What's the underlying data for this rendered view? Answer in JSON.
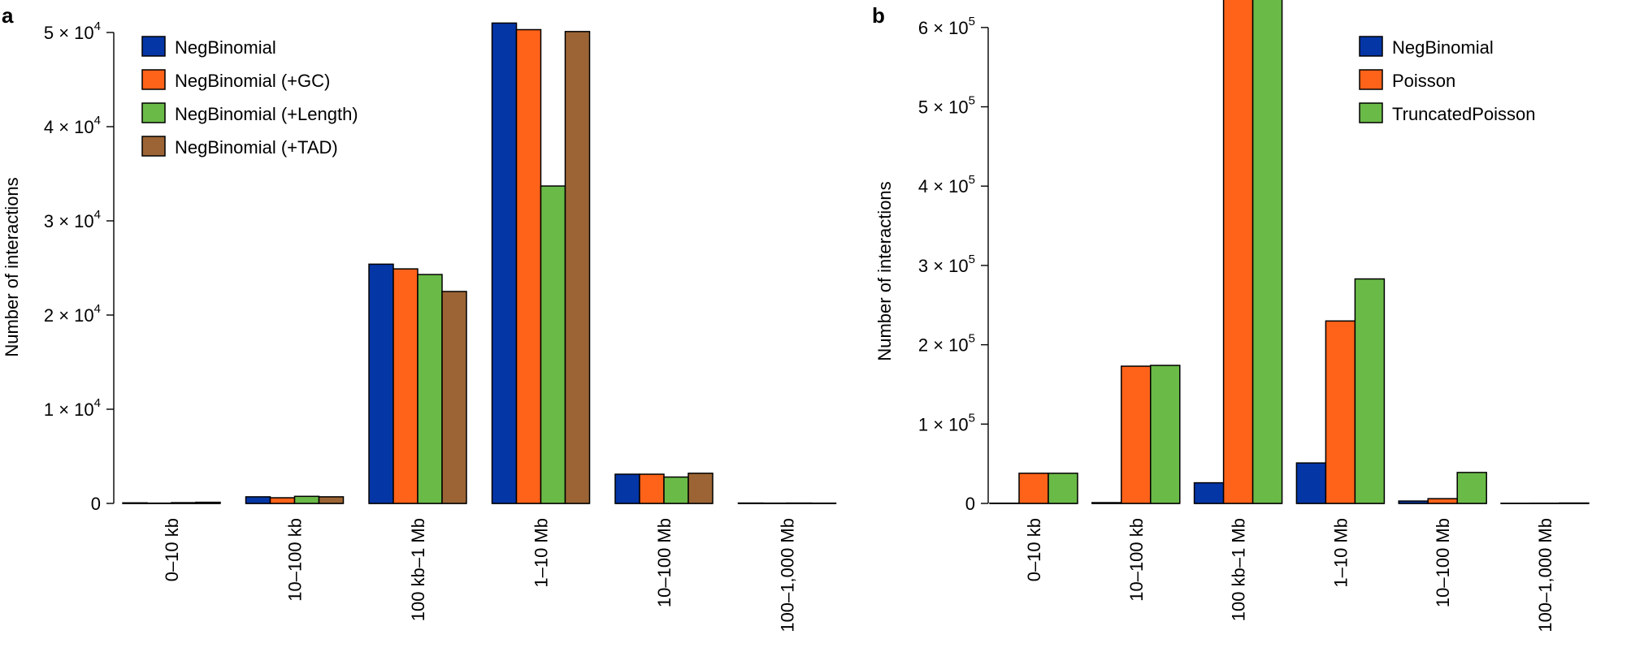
{
  "colors": {
    "NegBinomial": "#0536a6",
    "NegBinomial (+GC)": "#ff6219",
    "NegBinomial (+Length)": "#6aba47",
    "NegBinomial (+TAD)": "#9c6434",
    "Poisson": "#ff6219",
    "TruncatedPoisson": "#6aba47"
  },
  "chart_data": [
    {
      "type": "bar",
      "panel_label": "a",
      "ylabel": "Number of interactions",
      "ylim": [
        0,
        50000
      ],
      "yticks": [
        0,
        10000,
        20000,
        30000,
        40000,
        50000
      ],
      "ytick_labels": [
        {
          "base": "0",
          "exp": ""
        },
        {
          "base": "1 × 10",
          "exp": "4"
        },
        {
          "base": "2 × 10",
          "exp": "4"
        },
        {
          "base": "3 × 10",
          "exp": "4"
        },
        {
          "base": "4 × 10",
          "exp": "4"
        },
        {
          "base": "5 × 10",
          "exp": "4"
        }
      ],
      "categories": [
        "0–10 kb",
        "10–100 kb",
        "100 kb–1 Mb",
        "1–10 Mb",
        "10–100 Mb",
        "100–1,000 Mb"
      ],
      "legend_position": "top-left",
      "series": [
        {
          "name": "NegBinomial",
          "values": [
            60,
            700,
            25400,
            51000,
            3100,
            40
          ]
        },
        {
          "name": "NegBinomial (+GC)",
          "values": [
            30,
            600,
            24900,
            50300,
            3100,
            30
          ]
        },
        {
          "name": "NegBinomial (+Length)",
          "values": [
            80,
            750,
            24300,
            33700,
            2800,
            40
          ]
        },
        {
          "name": "NegBinomial (+TAD)",
          "values": [
            120,
            700,
            22500,
            50100,
            3200,
            30
          ]
        }
      ]
    },
    {
      "type": "bar",
      "panel_label": "b",
      "ylabel": "Number of interactions",
      "ylim": [
        0,
        650000
      ],
      "yticks": [
        0,
        100000,
        200000,
        300000,
        400000,
        500000,
        600000
      ],
      "ytick_labels": [
        {
          "base": "0",
          "exp": ""
        },
        {
          "base": "1 × 10",
          "exp": "5"
        },
        {
          "base": "2 × 10",
          "exp": "5"
        },
        {
          "base": "3 × 10",
          "exp": "5"
        },
        {
          "base": "4 × 10",
          "exp": "5"
        },
        {
          "base": "5 × 10",
          "exp": "5"
        },
        {
          "base": "6 × 10",
          "exp": "5"
        }
      ],
      "categories": [
        "0–10 kb",
        "10–100 kb",
        "100 kb–1 Mb",
        "1–10 Mb",
        "10–100 Mb",
        "100–1,000 Mb"
      ],
      "legend_position": "top-right",
      "series": [
        {
          "name": "NegBinomial",
          "values": [
            300,
            1000,
            26000,
            51000,
            3000,
            200
          ]
        },
        {
          "name": "Poisson",
          "values": [
            38000,
            173000,
            650000,
            230000,
            6000,
            300
          ]
        },
        {
          "name": "TruncatedPoisson",
          "values": [
            38000,
            174000,
            657000,
            283000,
            39000,
            500
          ]
        }
      ]
    }
  ]
}
